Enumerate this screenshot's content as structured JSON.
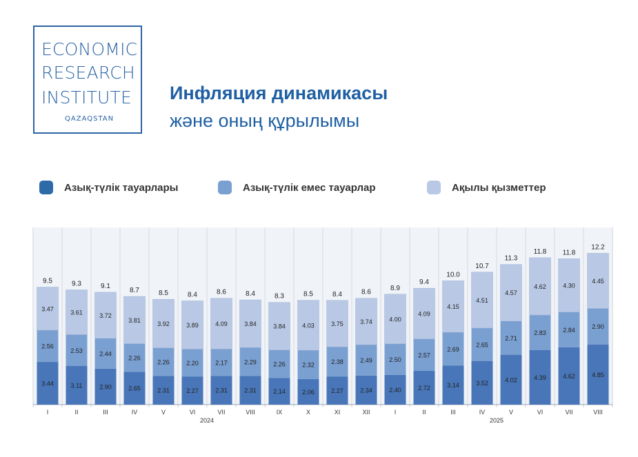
{
  "logo": {
    "lines": [
      "ECONOMIC",
      "RESEARCH",
      "INSTITUTE"
    ],
    "sub": "QAZAQSTAN"
  },
  "header": {
    "title": "Инфляция динамикасы",
    "subtitle": "және оның құрылымы"
  },
  "colors": {
    "brand": "#2b63a6",
    "food": "#4876b8",
    "nonfood": "#7a9fd1",
    "services": "#b9c9e5",
    "column_bg": "#f0f3f8"
  },
  "chart_data": {
    "type": "bar",
    "stacked": true,
    "categories": [
      "I",
      "II",
      "III",
      "IV",
      "V",
      "VI",
      "VII",
      "VIII",
      "IX",
      "X",
      "XI",
      "XII",
      "I",
      "II",
      "III",
      "IV",
      "V",
      "VI",
      "VII",
      "VIII"
    ],
    "year_groups": [
      {
        "label": "2024",
        "start": 0,
        "end": 11
      },
      {
        "label": "2025",
        "start": 12,
        "end": 19
      }
    ],
    "series": [
      {
        "name": "Азық-түлік тауарлары",
        "values": [
          3.44,
          3.11,
          2.9,
          2.65,
          2.31,
          2.27,
          2.31,
          2.31,
          2.14,
          2.06,
          2.27,
          2.34,
          2.4,
          2.72,
          3.14,
          3.52,
          4.02,
          4.39,
          4.62,
          4.85
        ]
      },
      {
        "name": "Азық-түлік емес тауарлар",
        "values": [
          2.56,
          2.53,
          2.44,
          2.26,
          2.26,
          2.2,
          2.17,
          2.29,
          2.26,
          2.32,
          2.38,
          2.49,
          2.5,
          2.57,
          2.69,
          2.65,
          2.71,
          2.83,
          2.84,
          2.9
        ]
      },
      {
        "name": "Ақылы қызметтер",
        "values": [
          3.47,
          3.61,
          3.72,
          3.81,
          3.92,
          3.89,
          4.09,
          3.84,
          3.84,
          4.03,
          3.75,
          3.74,
          4.0,
          4.09,
          4.15,
          4.51,
          4.57,
          4.62,
          4.3,
          4.45
        ]
      }
    ],
    "totals": [
      "9.5",
      "9.3",
      "9.1",
      "8.7",
      "8.5",
      "8.4",
      "8.6",
      "8.4",
      "8.3",
      "8.5",
      "8.4",
      "8.6",
      "8.9",
      "9.4",
      "10.0",
      "10.7",
      "11.3",
      "11.8",
      "11.8",
      "12.2"
    ],
    "ylim": [
      0,
      13
    ],
    "legend_position": "top"
  }
}
